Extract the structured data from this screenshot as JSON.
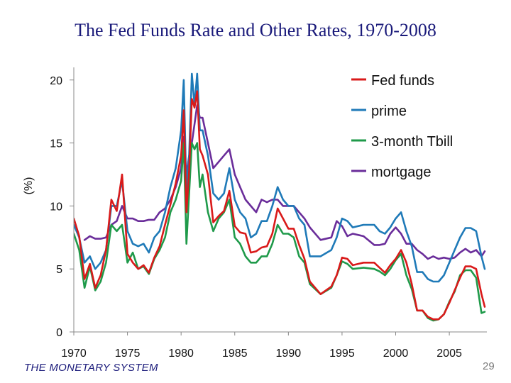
{
  "slide": {
    "title": "The Fed Funds Rate and Other Rates, 1970-2008",
    "footer": "THE MONETARY SYSTEM",
    "page_number": "29"
  },
  "colors": {
    "fed_funds": "#d91a1a",
    "prime": "#1f7ab8",
    "tbill": "#1f9a4a",
    "mortgage": "#6a2d9a",
    "axis": "#888888",
    "text": "#111111"
  },
  "chart_data": {
    "type": "line",
    "title": "The Fed Funds Rate and Other Rates, 1970-2008",
    "xlabel": "",
    "ylabel": "(%)",
    "xlim": [
      1970,
      2008.5
    ],
    "ylim": [
      0,
      21
    ],
    "yticks": [
      0,
      5,
      10,
      15,
      20
    ],
    "xticks": [
      1970,
      1975,
      1980,
      1985,
      1990,
      1995,
      2000,
      2005
    ],
    "xtick_labels": [
      "1970",
      "1975",
      "1980",
      "1985",
      "1990",
      "1995",
      "2000",
      "2005"
    ],
    "legend_position": "top-right",
    "series": [
      {
        "name": "Fed funds",
        "color_key": "fed_funds",
        "x": [
          1970,
          1970.5,
          1971,
          1971.5,
          1972,
          1972.5,
          1973,
          1973.5,
          1974,
          1974.5,
          1975,
          1975.5,
          1976,
          1976.5,
          1977,
          1977.5,
          1978,
          1978.5,
          1979,
          1979.5,
          1980,
          1980.25,
          1980.5,
          1980.75,
          1981,
          1981.25,
          1981.5,
          1981.75,
          1982,
          1982.5,
          1983,
          1983.5,
          1984,
          1984.5,
          1985,
          1985.5,
          1986,
          1986.5,
          1987,
          1987.5,
          1988,
          1988.5,
          1989,
          1989.5,
          1990,
          1990.5,
          1991,
          1991.5,
          1992,
          1993,
          1994,
          1994.5,
          1995,
          1995.5,
          1996,
          1997,
          1998,
          1998.5,
          1999,
          1999.5,
          2000,
          2000.5,
          2001,
          2001.5,
          2002,
          2002.5,
          2003,
          2003.5,
          2004,
          2004.5,
          2005,
          2005.5,
          2006,
          2006.5,
          2007,
          2007.5,
          2008,
          2008.3
        ],
        "y": [
          9.0,
          7.6,
          4.2,
          5.4,
          3.5,
          4.5,
          6.5,
          10.5,
          9.6,
          12.5,
          6.2,
          5.5,
          5.0,
          5.3,
          4.7,
          5.9,
          6.8,
          8.5,
          10.1,
          11.8,
          14.0,
          17.6,
          9.5,
          12.8,
          18.5,
          17.8,
          19.1,
          14.5,
          14.0,
          12.5,
          8.7,
          9.2,
          9.6,
          11.2,
          8.4,
          7.9,
          7.8,
          6.3,
          6.4,
          6.7,
          6.8,
          7.8,
          9.8,
          9.0,
          8.2,
          8.2,
          6.9,
          5.8,
          4.0,
          3.0,
          3.6,
          4.5,
          5.9,
          5.8,
          5.3,
          5.5,
          5.5,
          5.1,
          4.7,
          5.3,
          5.8,
          6.5,
          5.5,
          3.8,
          1.7,
          1.7,
          1.2,
          1.0,
          1.0,
          1.4,
          2.3,
          3.3,
          4.3,
          5.2,
          5.2,
          5.0,
          3.0,
          2.0
        ]
      },
      {
        "name": "prime",
        "color_key": "prime",
        "x": [
          1970,
          1970.5,
          1971,
          1971.5,
          1972,
          1972.5,
          1973,
          1973.5,
          1974,
          1974.5,
          1975,
          1975.5,
          1976,
          1976.5,
          1977,
          1977.5,
          1978,
          1978.5,
          1979,
          1979.5,
          1980,
          1980.25,
          1980.5,
          1980.75,
          1981,
          1981.25,
          1981.5,
          1981.75,
          1982,
          1982.5,
          1983,
          1983.5,
          1984,
          1984.5,
          1985,
          1985.5,
          1986,
          1986.5,
          1987,
          1987.5,
          1988,
          1988.5,
          1989,
          1989.5,
          1990,
          1990.5,
          1991,
          1991.5,
          1992,
          1993,
          1994,
          1994.5,
          1995,
          1995.5,
          1996,
          1997,
          1998,
          1998.5,
          1999,
          1999.5,
          2000,
          2000.5,
          2001,
          2001.5,
          2002,
          2002.5,
          2003,
          2003.5,
          2004,
          2004.5,
          2005,
          2005.5,
          2006,
          2006.5,
          2007,
          2007.5,
          2008,
          2008.3
        ],
        "y": [
          8.5,
          7.5,
          5.5,
          6.0,
          5.0,
          5.5,
          6.5,
          10.0,
          10.0,
          12.0,
          8.0,
          7.0,
          6.8,
          7.0,
          6.3,
          7.5,
          8.0,
          9.5,
          11.5,
          13.0,
          16.0,
          20.0,
          11.0,
          14.0,
          20.5,
          18.0,
          20.5,
          16.0,
          16.0,
          14.0,
          11.0,
          10.5,
          11.0,
          13.0,
          10.5,
          9.5,
          9.0,
          7.5,
          7.8,
          8.8,
          8.8,
          10.0,
          11.5,
          10.5,
          10.0,
          10.0,
          9.0,
          8.5,
          6.0,
          6.0,
          6.5,
          7.5,
          9.0,
          8.8,
          8.3,
          8.5,
          8.5,
          8.0,
          7.8,
          8.3,
          9.0,
          9.5,
          8.0,
          6.8,
          4.75,
          4.75,
          4.2,
          4.0,
          4.0,
          4.5,
          5.5,
          6.5,
          7.5,
          8.25,
          8.25,
          8.0,
          6.0,
          5.0
        ]
      },
      {
        "name": "3-month Tbill",
        "color_key": "tbill",
        "x": [
          1970,
          1970.5,
          1971,
          1971.5,
          1972,
          1972.5,
          1973,
          1973.5,
          1974,
          1974.5,
          1975,
          1975.5,
          1976,
          1976.5,
          1977,
          1977.5,
          1978,
          1978.5,
          1979,
          1979.5,
          1980,
          1980.25,
          1980.5,
          1980.75,
          1981,
          1981.25,
          1981.5,
          1981.75,
          1982,
          1982.5,
          1983,
          1983.5,
          1984,
          1984.5,
          1985,
          1985.5,
          1986,
          1986.5,
          1987,
          1987.5,
          1988,
          1988.5,
          1989,
          1989.5,
          1990,
          1990.5,
          1991,
          1991.5,
          1992,
          1993,
          1994,
          1994.5,
          1995,
          1995.5,
          1996,
          1997,
          1998,
          1998.5,
          1999,
          1999.5,
          2000,
          2000.5,
          2001,
          2001.5,
          2002,
          2002.5,
          2003,
          2003.5,
          2004,
          2004.5,
          2005,
          2005.5,
          2006,
          2006.5,
          2007,
          2007.5,
          2008,
          2008.3
        ],
        "y": [
          7.8,
          6.5,
          3.5,
          5.2,
          3.3,
          4.0,
          5.5,
          8.5,
          8.0,
          8.5,
          5.5,
          6.3,
          5.0,
          5.2,
          4.6,
          5.8,
          6.5,
          7.5,
          9.5,
          10.5,
          12.0,
          15.0,
          7.0,
          11.0,
          15.0,
          14.5,
          15.0,
          11.5,
          12.5,
          9.5,
          8.0,
          9.0,
          9.5,
          10.5,
          7.5,
          7.0,
          6.0,
          5.5,
          5.5,
          6.0,
          6.0,
          7.0,
          8.5,
          7.8,
          7.8,
          7.5,
          6.0,
          5.5,
          3.8,
          3.0,
          3.5,
          4.5,
          5.6,
          5.4,
          5.0,
          5.1,
          5.0,
          4.8,
          4.5,
          5.0,
          5.7,
          6.2,
          4.5,
          3.4,
          1.7,
          1.7,
          1.1,
          0.9,
          1.0,
          1.4,
          2.4,
          3.2,
          4.5,
          4.9,
          4.9,
          4.3,
          1.5,
          1.6
        ]
      },
      {
        "name": "mortgage",
        "color_key": "mortgage",
        "x": [
          1971,
          1971.5,
          1972,
          1972.5,
          1973,
          1973.5,
          1974,
          1974.5,
          1975,
          1975.5,
          1976,
          1976.5,
          1977,
          1977.5,
          1978,
          1978.5,
          1979,
          1979.5,
          1980,
          1980.25,
          1980.5,
          1980.75,
          1981,
          1981.25,
          1981.5,
          1981.75,
          1982,
          1982.5,
          1983,
          1983.5,
          1984,
          1984.5,
          1985,
          1985.5,
          1986,
          1986.5,
          1987,
          1987.5,
          1988,
          1988.5,
          1989,
          1989.5,
          1990,
          1990.5,
          1991,
          1991.5,
          1992,
          1993,
          1994,
          1994.5,
          1995,
          1995.5,
          1996,
          1997,
          1998,
          1998.5,
          1999,
          1999.5,
          2000,
          2000.5,
          2001,
          2001.5,
          2002,
          2002.5,
          2003,
          2003.5,
          2004,
          2004.5,
          2005,
          2005.5,
          2006,
          2006.5,
          2007,
          2007.5,
          2008,
          2008.3
        ],
        "y": [
          7.3,
          7.6,
          7.4,
          7.4,
          7.5,
          8.5,
          8.8,
          10.0,
          9.0,
          9.0,
          8.8,
          8.8,
          8.9,
          8.9,
          9.5,
          9.8,
          10.5,
          11.5,
          13.0,
          15.5,
          12.5,
          14.0,
          15.0,
          16.5,
          18.0,
          17.0,
          17.0,
          15.0,
          13.0,
          13.5,
          14.0,
          14.5,
          12.5,
          11.5,
          10.5,
          10.0,
          9.5,
          10.5,
          10.3,
          10.5,
          10.5,
          10.0,
          10.0,
          10.0,
          9.5,
          9.0,
          8.3,
          7.3,
          7.5,
          8.8,
          8.4,
          7.6,
          7.8,
          7.6,
          6.9,
          6.9,
          7.0,
          7.8,
          8.3,
          7.8,
          7.0,
          7.0,
          6.5,
          6.2,
          5.8,
          6.0,
          5.8,
          5.9,
          5.8,
          5.9,
          6.3,
          6.6,
          6.3,
          6.5,
          6.0,
          6.4
        ]
      }
    ]
  }
}
